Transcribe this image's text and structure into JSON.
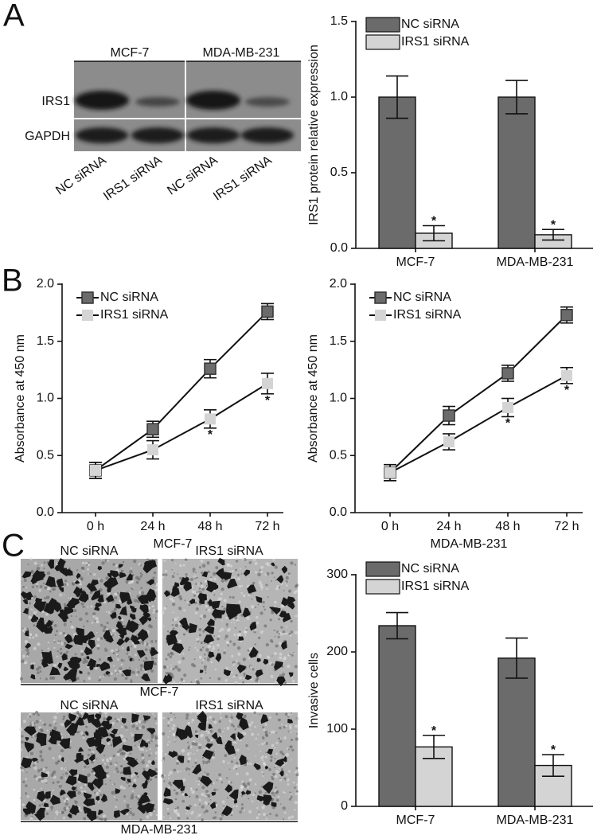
{
  "panel_labels": [
    "A",
    "B",
    "C"
  ],
  "blot": {
    "cell_lines": [
      "MCF-7",
      "MDA-MB-231"
    ],
    "rows": [
      "IRS1",
      "GAPDH"
    ],
    "lanes": [
      "NC siRNA",
      "IRS1 siRNA",
      "NC siRNA",
      "IRS1 siRNA"
    ]
  },
  "micrographs": {
    "columns": [
      "NC siRNA",
      "IRS1 siRNA"
    ],
    "cell_lines": [
      "MCF-7",
      "MDA-MB-231"
    ]
  },
  "chart_data": [
    {
      "type": "bar",
      "y_label": "IRS1 protein relative expression",
      "categories": [
        "MCF-7",
        "MDA-MB-231"
      ],
      "series": [
        {
          "name": "NC siRNA",
          "color": "#6b6b6b",
          "values": [
            1.0,
            1.0
          ],
          "errors": [
            0.14,
            0.11
          ]
        },
        {
          "name": "IRS1 siRNA",
          "color": "#d4d4d4",
          "values": [
            0.1,
            0.09
          ],
          "errors": [
            0.05,
            0.035
          ],
          "significance": [
            "*",
            "*"
          ]
        }
      ],
      "ylim": [
        0,
        1.5
      ],
      "yticks": [
        {
          "value": 0,
          "label": "0.0"
        },
        0.5,
        {
          "value": 1,
          "label": "1.0"
        },
        1.5
      ]
    },
    {
      "type": "line",
      "x_label": "MCF-7",
      "y_label": "Absorbance at 450 nm",
      "categories": [
        "0 h",
        "24 h",
        "48 h",
        "72 h"
      ],
      "series": [
        {
          "name": "NC siRNA",
          "color": "#6b6b6b",
          "values": [
            0.37,
            0.73,
            1.26,
            1.76
          ],
          "errors": [
            0.07,
            0.07,
            0.08,
            0.07
          ]
        },
        {
          "name": "IRS1 siRNA",
          "color": "#d4d4d4",
          "values": [
            0.37,
            0.55,
            0.82,
            1.13
          ],
          "errors": [
            0.07,
            0.08,
            0.08,
            0.09
          ],
          "significance": [
            null,
            null,
            "*",
            "*"
          ]
        }
      ],
      "ylim": [
        0,
        2
      ],
      "yticks": [
        {
          "value": 0,
          "label": "0.0"
        },
        0.5,
        {
          "value": 1,
          "label": "1.0"
        },
        1.5,
        {
          "value": 2,
          "label": "2.0"
        }
      ]
    },
    {
      "type": "line",
      "x_label": "MDA-MB-231",
      "y_label": "Absorbance at 450 nm",
      "categories": [
        "0 h",
        "24 h",
        "48 h",
        "72 h"
      ],
      "series": [
        {
          "name": "NC siRNA",
          "color": "#6b6b6b",
          "values": [
            0.35,
            0.85,
            1.22,
            1.73
          ],
          "errors": [
            0.07,
            0.08,
            0.07,
            0.07
          ]
        },
        {
          "name": "IRS1 siRNA",
          "color": "#d4d4d4",
          "values": [
            0.35,
            0.62,
            0.92,
            1.2
          ],
          "errors": [
            0.07,
            0.07,
            0.08,
            0.07
          ],
          "significance": [
            null,
            null,
            "*",
            "*"
          ]
        }
      ],
      "ylim": [
        0,
        2
      ],
      "yticks": [
        {
          "value": 0,
          "label": "0.0"
        },
        0.5,
        {
          "value": 1,
          "label": "1.0"
        },
        1.5,
        {
          "value": 2,
          "label": "2.0"
        }
      ]
    },
    {
      "type": "bar",
      "y_label": "Invasive cells",
      "categories": [
        "MCF-7",
        "MDA-MB-231"
      ],
      "series": [
        {
          "name": "NC siRNA",
          "color": "#6b6b6b",
          "values": [
            234,
            192
          ],
          "errors": [
            17,
            26
          ]
        },
        {
          "name": "IRS1 siRNA",
          "color": "#d4d4d4",
          "values": [
            77,
            53
          ],
          "errors": [
            15,
            14
          ],
          "significance": [
            "*",
            "*"
          ]
        }
      ],
      "ylim": [
        0,
        300
      ],
      "yticks": [
        0,
        100,
        200,
        300
      ]
    }
  ]
}
